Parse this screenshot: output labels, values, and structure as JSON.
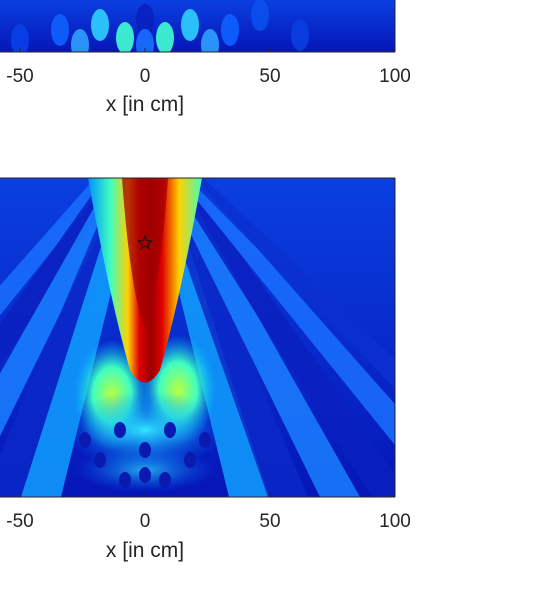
{
  "chart_data": [
    {
      "type": "heatmap",
      "panel": "top",
      "xlabel": "x [in cm]",
      "xlim": [
        -60,
        100
      ],
      "xticks": [
        -50,
        0,
        50,
        100
      ],
      "xtick_labels": [
        "-50",
        "0",
        "50",
        "100"
      ],
      "colormap": "jet",
      "grid": false
    },
    {
      "type": "heatmap",
      "panel": "bottom",
      "xlabel": "x [in cm]",
      "xlim": [
        -60,
        100
      ],
      "xticks": [
        -50,
        0,
        50,
        100
      ],
      "xtick_labels": [
        "-50",
        "0",
        "50",
        "100"
      ],
      "colormap": "jet",
      "grid": false,
      "marker": {
        "symbol": "star",
        "x": 0
      }
    }
  ]
}
